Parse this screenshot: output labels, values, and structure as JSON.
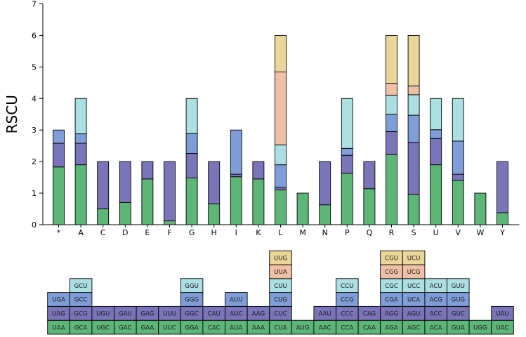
{
  "chart_data": {
    "type": "bar",
    "stacked": true,
    "ylabel": "RSCU",
    "ylim": [
      0,
      7
    ],
    "yticks": [
      0,
      1,
      2,
      3,
      4,
      5,
      6,
      7
    ],
    "layer_colors": [
      "#5DB678",
      "#7A74B8",
      "#7F9ED8",
      "#ACDFE2",
      "#EFC0A6",
      "#EBD69A"
    ],
    "categories": [
      "*",
      "A",
      "C",
      "D",
      "E",
      "F",
      "G",
      "H",
      "I",
      "K",
      "L",
      "M",
      "N",
      "P",
      "Q",
      "R",
      "S",
      "U",
      "V",
      "W",
      "Y"
    ],
    "stacks": [
      [
        1.83,
        0.75,
        0.42
      ],
      [
        1.9,
        0.68,
        0.3,
        1.12
      ],
      [
        0.5,
        1.5
      ],
      [
        0.7,
        1.3
      ],
      [
        1.45,
        0.55
      ],
      [
        0.12,
        1.88
      ],
      [
        1.48,
        0.78,
        0.63,
        1.11
      ],
      [
        0.66,
        1.34
      ],
      [
        1.52,
        0.08,
        1.4
      ],
      [
        1.45,
        0.55
      ],
      [
        1.1,
        0.08,
        0.72,
        0.63,
        2.31,
        1.16
      ],
      [
        1.0
      ],
      [
        0.63,
        1.37
      ],
      [
        1.63,
        0.57,
        0.22,
        1.58
      ],
      [
        1.14,
        0.86
      ],
      [
        2.22,
        0.73,
        0.55,
        0.6,
        0.38,
        1.52
      ],
      [
        0.96,
        1.65,
        0.86,
        0.65,
        0.28,
        1.6
      ],
      [
        1.9,
        0.83,
        0.28,
        0.99
      ],
      [
        1.4,
        0.2,
        1.05,
        1.35
      ],
      [
        1.0
      ],
      [
        0.38,
        1.62
      ]
    ],
    "codon_table": [
      [
        "UAA",
        "UAG",
        "UGA"
      ],
      [
        "GCA",
        "GCG",
        "GCC",
        "GCU"
      ],
      [
        "UGC",
        "UGU"
      ],
      [
        "GAC",
        "GAU"
      ],
      [
        "GAA",
        "GAG"
      ],
      [
        "UUC",
        "UUU"
      ],
      [
        "GGA",
        "GGC",
        "GGG",
        "GGU"
      ],
      [
        "CAC",
        "CAU"
      ],
      [
        "AUA",
        "AUC",
        "AUU"
      ],
      [
        "AAA",
        "AAG"
      ],
      [
        "CUA",
        "CUC",
        "CUG",
        "CUU",
        "UUA",
        "UUG"
      ],
      [
        "AUG"
      ],
      [
        "AAC",
        "AAU"
      ],
      [
        "CCA",
        "CCC",
        "CCG",
        "CCU"
      ],
      [
        "CAA",
        "CAG"
      ],
      [
        "AGA",
        "AGG",
        "CGA",
        "CGC",
        "CGG",
        "CGU"
      ],
      [
        "AGC",
        "AGU",
        "UCA",
        "UCC",
        "UCG",
        "UCU"
      ],
      [
        "ACA",
        "ACC",
        "ACG",
        "ACU"
      ],
      [
        "GUA",
        "GUC",
        "GUG",
        "GUU"
      ],
      [
        "UGG"
      ],
      [
        "UAC",
        "UAU"
      ]
    ]
  }
}
